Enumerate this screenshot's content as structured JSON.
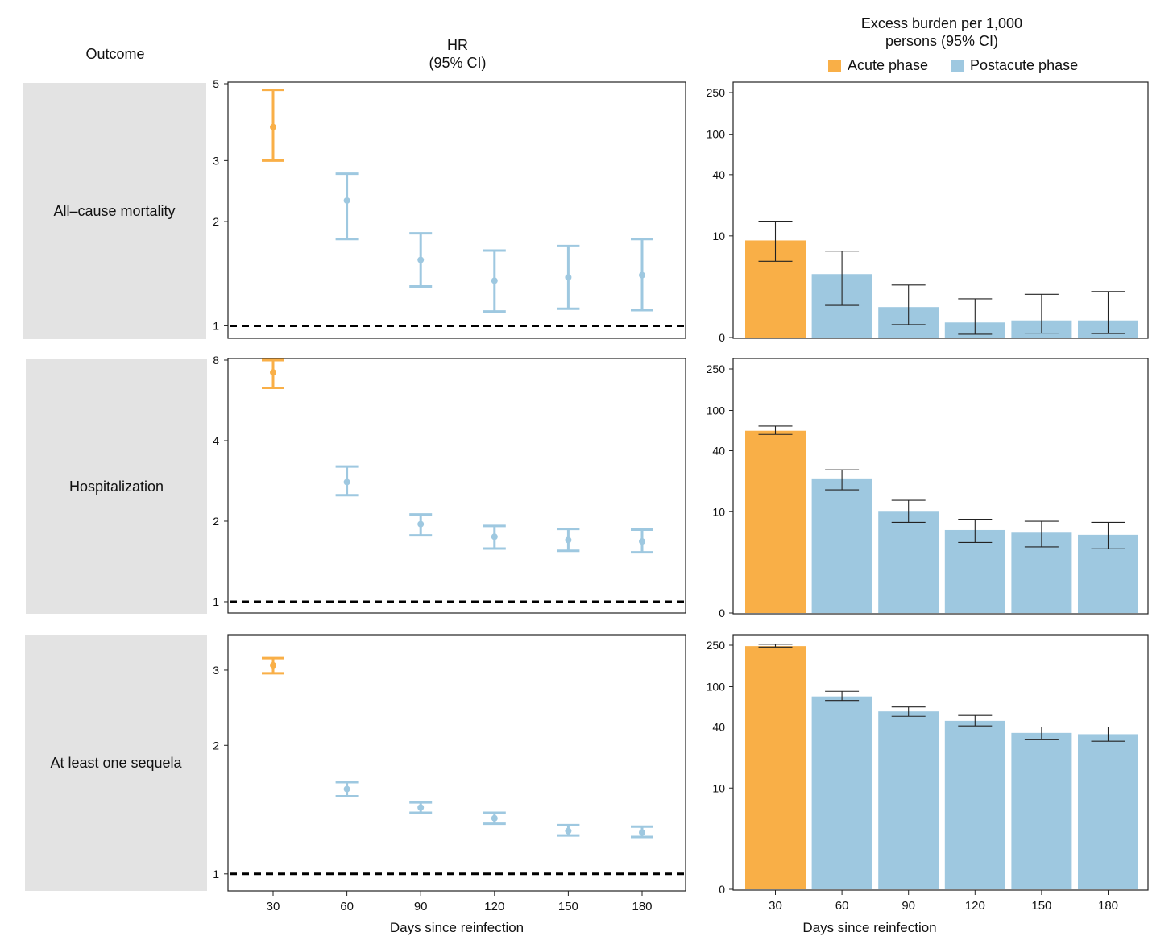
{
  "headers": {
    "outcome": "Outcome",
    "hr_line1": "HR",
    "hr_line2": "(95% CI)",
    "burden_line1": "Excess burden per 1,000",
    "burden_line2": "persons (95% CI)"
  },
  "legend": {
    "acute": "Acute phase",
    "postacute": "Postacute phase"
  },
  "colors": {
    "acute": "#f9af47",
    "postacute": "#9ec8e0",
    "reference_line": "#000000"
  },
  "xlabel": "Days since reinfection",
  "outcomes": [
    "All–cause mortality",
    "Hospitalization",
    "At least one sequela"
  ],
  "chart_data": [
    {
      "type": "scatter",
      "outcome": "All–cause mortality",
      "x": [
        30,
        60,
        90,
        120,
        150,
        180
      ],
      "hr": [
        3.75,
        2.3,
        1.55,
        1.35,
        1.38,
        1.4
      ],
      "lower": [
        3.0,
        1.78,
        1.3,
        1.1,
        1.12,
        1.11
      ],
      "upper": [
        4.8,
        2.75,
        1.85,
        1.65,
        1.7,
        1.78
      ],
      "phase": [
        "acute",
        "postacute",
        "postacute",
        "postacute",
        "postacute",
        "postacute"
      ],
      "yscale": "log",
      "ylim": [
        0.93,
        5
      ],
      "yticks": [
        1,
        2,
        3,
        5
      ],
      "reference": 1
    },
    {
      "type": "scatter",
      "outcome": "Hospitalization",
      "x": [
        30,
        60,
        90,
        120,
        150,
        180
      ],
      "hr": [
        7.2,
        2.8,
        1.95,
        1.75,
        1.7,
        1.68
      ],
      "lower": [
        6.3,
        2.5,
        1.77,
        1.58,
        1.55,
        1.53
      ],
      "upper": [
        8.0,
        3.2,
        2.12,
        1.92,
        1.87,
        1.86
      ],
      "phase": [
        "acute",
        "postacute",
        "postacute",
        "postacute",
        "postacute",
        "postacute"
      ],
      "yscale": "log",
      "ylim": [
        0.92,
        8
      ],
      "yticks": [
        1,
        2,
        4,
        8
      ],
      "reference": 1
    },
    {
      "type": "scatter",
      "outcome": "At least one sequela",
      "x": [
        30,
        60,
        90,
        120,
        150,
        180
      ],
      "hr": [
        3.08,
        1.58,
        1.43,
        1.35,
        1.26,
        1.25
      ],
      "lower": [
        2.95,
        1.52,
        1.39,
        1.31,
        1.23,
        1.22
      ],
      "upper": [
        3.2,
        1.64,
        1.47,
        1.39,
        1.3,
        1.29
      ],
      "phase": [
        "acute",
        "postacute",
        "postacute",
        "postacute",
        "postacute",
        "postacute"
      ],
      "yscale": "log",
      "ylim": [
        0.92,
        3.6
      ],
      "yticks": [
        1,
        2,
        3
      ],
      "reference": 1
    },
    {
      "type": "bar",
      "outcome": "All–cause mortality",
      "categories": [
        "30",
        "60",
        "90",
        "120",
        "150",
        "180"
      ],
      "values": [
        9,
        4,
        1.5,
        0.7,
        0.8,
        0.8
      ],
      "lower": [
        5.5,
        1.6,
        0.6,
        0.15,
        0.2,
        0.18
      ],
      "upper": [
        14,
        7,
        3,
        2,
        2.3,
        2.5
      ],
      "phase": [
        "acute",
        "postacute",
        "postacute",
        "postacute",
        "postacute",
        "postacute"
      ],
      "yscale": "pseudo-log",
      "ylim": [
        0,
        250
      ],
      "yticks": [
        0,
        10,
        40,
        100,
        250
      ]
    },
    {
      "type": "bar",
      "outcome": "Hospitalization",
      "categories": [
        "30",
        "60",
        "90",
        "120",
        "150",
        "180"
      ],
      "values": [
        63,
        21,
        10,
        6.5,
        6.1,
        5.8
      ],
      "lower": [
        58,
        16.5,
        7.8,
        4.8,
        4.3,
        4.1
      ],
      "upper": [
        70,
        26,
        13,
        8.4,
        8.0,
        7.8
      ],
      "phase": [
        "acute",
        "postacute",
        "postacute",
        "postacute",
        "postacute",
        "postacute"
      ],
      "yscale": "pseudo-log",
      "ylim": [
        0,
        250
      ],
      "yticks": [
        0,
        10,
        40,
        100,
        250
      ]
    },
    {
      "type": "bar",
      "outcome": "At least one sequela",
      "categories": [
        "30",
        "60",
        "90",
        "120",
        "150",
        "180"
      ],
      "values": [
        245,
        80,
        57,
        46,
        35,
        34
      ],
      "lower": [
        240,
        73,
        51,
        41,
        30,
        29
      ],
      "upper": [
        255,
        90,
        63,
        52,
        40,
        40
      ],
      "phase": [
        "acute",
        "postacute",
        "postacute",
        "postacute",
        "postacute",
        "postacute"
      ],
      "yscale": "pseudo-log",
      "ylim": [
        0,
        250
      ],
      "yticks": [
        0,
        10,
        40,
        100,
        250
      ]
    }
  ]
}
